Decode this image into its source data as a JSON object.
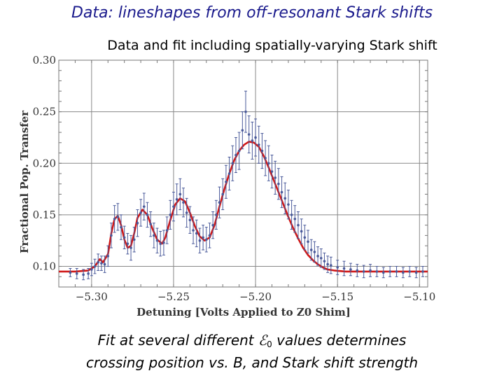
{
  "slide": {
    "title": "Data: lineshapes from off-resonant Stark shifts",
    "caption_part1": "Fit at several different ",
    "caption_symbol": "ℰ",
    "caption_subscript": "0",
    "caption_part2": " values determines",
    "caption_line2": "crossing position vs. B, and Stark shift strength"
  },
  "chart_data": {
    "type": "scatter",
    "title": "Data and fit including spatially-varying Stark shift",
    "xlabel": "Detuning [Volts Applied to Z0 Shim]",
    "ylabel": "Fractional Pop. Transfer",
    "xlim": [
      -5.32,
      -5.095
    ],
    "ylim": [
      0.08,
      0.3
    ],
    "xticks": [
      -5.3,
      -5.25,
      -5.2,
      -5.15,
      -5.1
    ],
    "xtick_labels": [
      "−5.30",
      "−5.25",
      "−5.20",
      "−5.15",
      "−5.10"
    ],
    "yticks": [
      0.1,
      0.15,
      0.2,
      0.25,
      0.3
    ],
    "ytick_labels": [
      "0.10",
      "0.15",
      "0.20",
      "0.25",
      "0.30"
    ],
    "grid": true,
    "colors": {
      "data": "#4a5a9a",
      "fit": "#d01818",
      "grid": "#888888"
    },
    "series": [
      {
        "name": "data",
        "points": [
          [
            -5.313,
            0.094,
            0.004
          ],
          [
            -5.309,
            0.093,
            0.005
          ],
          [
            -5.305,
            0.092,
            0.005
          ],
          [
            -5.302,
            0.093,
            0.005
          ],
          [
            -5.3,
            0.097,
            0.006
          ],
          [
            -5.298,
            0.1,
            0.007
          ],
          [
            -5.296,
            0.104,
            0.008
          ],
          [
            -5.294,
            0.103,
            0.007
          ],
          [
            -5.292,
            0.102,
            0.008
          ],
          [
            -5.29,
            0.11,
            0.01
          ],
          [
            -5.288,
            0.13,
            0.012
          ],
          [
            -5.286,
            0.146,
            0.013
          ],
          [
            -5.284,
            0.148,
            0.013
          ],
          [
            -5.282,
            0.138,
            0.012
          ],
          [
            -5.28,
            0.128,
            0.011
          ],
          [
            -5.278,
            0.122,
            0.01
          ],
          [
            -5.276,
            0.118,
            0.012
          ],
          [
            -5.274,
            0.126,
            0.012
          ],
          [
            -5.272,
            0.142,
            0.013
          ],
          [
            -5.27,
            0.152,
            0.013
          ],
          [
            -5.268,
            0.158,
            0.013
          ],
          [
            -5.266,
            0.15,
            0.012
          ],
          [
            -5.264,
            0.141,
            0.012
          ],
          [
            -5.262,
            0.13,
            0.012
          ],
          [
            -5.26,
            0.125,
            0.012
          ],
          [
            -5.258,
            0.122,
            0.012
          ],
          [
            -5.256,
            0.123,
            0.012
          ],
          [
            -5.254,
            0.135,
            0.013
          ],
          [
            -5.252,
            0.15,
            0.014
          ],
          [
            -5.25,
            0.158,
            0.014
          ],
          [
            -5.248,
            0.165,
            0.015
          ],
          [
            -5.246,
            0.17,
            0.015
          ],
          [
            -5.244,
            0.162,
            0.014
          ],
          [
            -5.242,
            0.152,
            0.014
          ],
          [
            -5.24,
            0.145,
            0.013
          ],
          [
            -5.238,
            0.135,
            0.013
          ],
          [
            -5.236,
            0.132,
            0.013
          ],
          [
            -5.234,
            0.125,
            0.012
          ],
          [
            -5.232,
            0.128,
            0.012
          ],
          [
            -5.23,
            0.126,
            0.012
          ],
          [
            -5.228,
            0.13,
            0.012
          ],
          [
            -5.226,
            0.14,
            0.013
          ],
          [
            -5.224,
            0.15,
            0.014
          ],
          [
            -5.222,
            0.162,
            0.015
          ],
          [
            -5.22,
            0.17,
            0.015
          ],
          [
            -5.218,
            0.182,
            0.016
          ],
          [
            -5.216,
            0.19,
            0.016
          ],
          [
            -5.214,
            0.2,
            0.017
          ],
          [
            -5.212,
            0.208,
            0.017
          ],
          [
            -5.21,
            0.212,
            0.018
          ],
          [
            -5.208,
            0.232,
            0.018
          ],
          [
            -5.206,
            0.25,
            0.02
          ],
          [
            -5.204,
            0.228,
            0.018
          ],
          [
            -5.202,
            0.222,
            0.018
          ],
          [
            -5.2,
            0.225,
            0.018
          ],
          [
            -5.198,
            0.218,
            0.018
          ],
          [
            -5.196,
            0.212,
            0.017
          ],
          [
            -5.194,
            0.205,
            0.017
          ],
          [
            -5.192,
            0.2,
            0.017
          ],
          [
            -5.19,
            0.192,
            0.016
          ],
          [
            -5.188,
            0.186,
            0.016
          ],
          [
            -5.186,
            0.18,
            0.015
          ],
          [
            -5.184,
            0.172,
            0.015
          ],
          [
            -5.182,
            0.166,
            0.015
          ],
          [
            -5.18,
            0.16,
            0.014
          ],
          [
            -5.178,
            0.15,
            0.014
          ],
          [
            -5.176,
            0.146,
            0.013
          ],
          [
            -5.174,
            0.14,
            0.013
          ],
          [
            -5.172,
            0.134,
            0.012
          ],
          [
            -5.17,
            0.128,
            0.012
          ],
          [
            -5.168,
            0.124,
            0.011
          ],
          [
            -5.166,
            0.116,
            0.01
          ],
          [
            -5.164,
            0.114,
            0.01
          ],
          [
            -5.162,
            0.11,
            0.009
          ],
          [
            -5.16,
            0.108,
            0.009
          ],
          [
            -5.158,
            0.105,
            0.008
          ],
          [
            -5.156,
            0.102,
            0.008
          ],
          [
            -5.154,
            0.101,
            0.008
          ],
          [
            -5.15,
            0.099,
            0.007
          ],
          [
            -5.146,
            0.098,
            0.007
          ],
          [
            -5.142,
            0.097,
            0.006
          ],
          [
            -5.138,
            0.096,
            0.006
          ],
          [
            -5.134,
            0.095,
            0.006
          ],
          [
            -5.13,
            0.096,
            0.006
          ],
          [
            -5.126,
            0.095,
            0.005
          ],
          [
            -5.122,
            0.094,
            0.005
          ],
          [
            -5.118,
            0.095,
            0.005
          ],
          [
            -5.114,
            0.095,
            0.005
          ],
          [
            -5.11,
            0.094,
            0.005
          ],
          [
            -5.106,
            0.095,
            0.005
          ],
          [
            -5.102,
            0.094,
            0.005
          ],
          [
            -5.098,
            0.095,
            0.005
          ]
        ]
      },
      {
        "name": "fit",
        "points": [
          [
            -5.32,
            0.095
          ],
          [
            -5.31,
            0.095
          ],
          [
            -5.302,
            0.096
          ],
          [
            -5.298,
            0.1
          ],
          [
            -5.295,
            0.107
          ],
          [
            -5.293,
            0.104
          ],
          [
            -5.29,
            0.112
          ],
          [
            -5.288,
            0.132
          ],
          [
            -5.286,
            0.146
          ],
          [
            -5.284,
            0.149
          ],
          [
            -5.282,
            0.14
          ],
          [
            -5.28,
            0.126
          ],
          [
            -5.278,
            0.118
          ],
          [
            -5.276,
            0.12
          ],
          [
            -5.274,
            0.132
          ],
          [
            -5.272,
            0.147
          ],
          [
            -5.269,
            0.155
          ],
          [
            -5.266,
            0.15
          ],
          [
            -5.263,
            0.137
          ],
          [
            -5.26,
            0.126
          ],
          [
            -5.257,
            0.122
          ],
          [
            -5.255,
            0.128
          ],
          [
            -5.252,
            0.145
          ],
          [
            -5.249,
            0.16
          ],
          [
            -5.246,
            0.166
          ],
          [
            -5.243,
            0.163
          ],
          [
            -5.24,
            0.152
          ],
          [
            -5.237,
            0.139
          ],
          [
            -5.234,
            0.129
          ],
          [
            -5.231,
            0.125
          ],
          [
            -5.228,
            0.128
          ],
          [
            -5.225,
            0.14
          ],
          [
            -5.222,
            0.158
          ],
          [
            -5.219,
            0.175
          ],
          [
            -5.216,
            0.19
          ],
          [
            -5.213,
            0.203
          ],
          [
            -5.21,
            0.212
          ],
          [
            -5.207,
            0.218
          ],
          [
            -5.204,
            0.221
          ],
          [
            -5.201,
            0.22
          ],
          [
            -5.198,
            0.216
          ],
          [
            -5.195,
            0.207
          ],
          [
            -5.192,
            0.196
          ],
          [
            -5.189,
            0.184
          ],
          [
            -5.186,
            0.172
          ],
          [
            -5.183,
            0.16
          ],
          [
            -5.18,
            0.148
          ],
          [
            -5.177,
            0.137
          ],
          [
            -5.174,
            0.127
          ],
          [
            -5.171,
            0.118
          ],
          [
            -5.168,
            0.111
          ],
          [
            -5.165,
            0.106
          ],
          [
            -5.162,
            0.102
          ],
          [
            -5.159,
            0.099
          ],
          [
            -5.156,
            0.097
          ],
          [
            -5.152,
            0.096
          ],
          [
            -5.145,
            0.095
          ],
          [
            -5.13,
            0.095
          ],
          [
            -5.11,
            0.095
          ],
          [
            -5.095,
            0.095
          ]
        ]
      }
    ]
  }
}
